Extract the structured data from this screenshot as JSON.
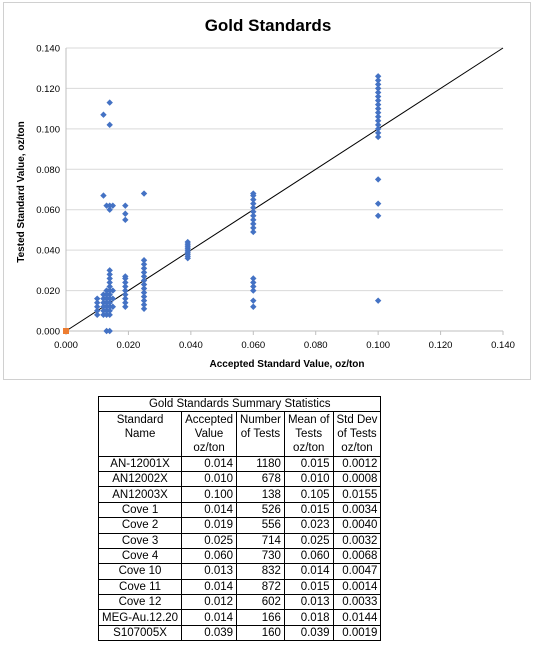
{
  "chart_data": {
    "type": "scatter",
    "title": "Gold Standards",
    "xlabel": "Accepted Standard Value, oz/ton",
    "ylabel": "Tested Standard Value, oz/ton",
    "xlim": [
      0,
      0.14
    ],
    "ylim": [
      0,
      0.14
    ],
    "x_ticks": [
      "0.000",
      "0.020",
      "0.040",
      "0.060",
      "0.080",
      "0.100",
      "0.120",
      "0.140"
    ],
    "y_ticks": [
      "0.000",
      "0.020",
      "0.040",
      "0.060",
      "0.080",
      "0.100",
      "0.120",
      "0.140"
    ],
    "grid": "horizontal",
    "marker_color": "#4472C4",
    "line_color": "#000000",
    "origin_marker_color": "#ED7D31",
    "reference_line": {
      "x": [
        0,
        0.14
      ],
      "y": [
        0,
        0.14
      ]
    },
    "origin_point": {
      "x": 0,
      "y": 0
    },
    "points": [
      {
        "x": 0.01,
        "y": 0.008
      },
      {
        "x": 0.01,
        "y": 0.01
      },
      {
        "x": 0.01,
        "y": 0.012
      },
      {
        "x": 0.01,
        "y": 0.014
      },
      {
        "x": 0.01,
        "y": 0.016
      },
      {
        "x": 0.012,
        "y": 0.008
      },
      {
        "x": 0.012,
        "y": 0.01
      },
      {
        "x": 0.012,
        "y": 0.012
      },
      {
        "x": 0.012,
        "y": 0.014
      },
      {
        "x": 0.012,
        "y": 0.016
      },
      {
        "x": 0.012,
        "y": 0.067
      },
      {
        "x": 0.012,
        "y": 0.107
      },
      {
        "x": 0.012,
        "y": 0.018
      },
      {
        "x": 0.013,
        "y": 0.0
      },
      {
        "x": 0.013,
        "y": 0.008
      },
      {
        "x": 0.013,
        "y": 0.01
      },
      {
        "x": 0.013,
        "y": 0.012
      },
      {
        "x": 0.013,
        "y": 0.014
      },
      {
        "x": 0.013,
        "y": 0.016
      },
      {
        "x": 0.013,
        "y": 0.018
      },
      {
        "x": 0.013,
        "y": 0.02
      },
      {
        "x": 0.013,
        "y": 0.062
      },
      {
        "x": 0.014,
        "y": 0.0
      },
      {
        "x": 0.014,
        "y": 0.008
      },
      {
        "x": 0.014,
        "y": 0.01
      },
      {
        "x": 0.014,
        "y": 0.012
      },
      {
        "x": 0.014,
        "y": 0.014
      },
      {
        "x": 0.014,
        "y": 0.016
      },
      {
        "x": 0.014,
        "y": 0.018
      },
      {
        "x": 0.014,
        "y": 0.02
      },
      {
        "x": 0.014,
        "y": 0.022
      },
      {
        "x": 0.014,
        "y": 0.024
      },
      {
        "x": 0.014,
        "y": 0.026
      },
      {
        "x": 0.014,
        "y": 0.028
      },
      {
        "x": 0.014,
        "y": 0.03
      },
      {
        "x": 0.014,
        "y": 0.06
      },
      {
        "x": 0.014,
        "y": 0.062
      },
      {
        "x": 0.014,
        "y": 0.102
      },
      {
        "x": 0.014,
        "y": 0.113
      },
      {
        "x": 0.015,
        "y": 0.012
      },
      {
        "x": 0.015,
        "y": 0.016
      },
      {
        "x": 0.015,
        "y": 0.02
      },
      {
        "x": 0.015,
        "y": 0.062
      },
      {
        "x": 0.019,
        "y": 0.012
      },
      {
        "x": 0.019,
        "y": 0.014
      },
      {
        "x": 0.019,
        "y": 0.016
      },
      {
        "x": 0.019,
        "y": 0.018
      },
      {
        "x": 0.019,
        "y": 0.02
      },
      {
        "x": 0.019,
        "y": 0.022
      },
      {
        "x": 0.019,
        "y": 0.024
      },
      {
        "x": 0.019,
        "y": 0.026
      },
      {
        "x": 0.019,
        "y": 0.027
      },
      {
        "x": 0.019,
        "y": 0.055
      },
      {
        "x": 0.019,
        "y": 0.058
      },
      {
        "x": 0.019,
        "y": 0.062
      },
      {
        "x": 0.025,
        "y": 0.011
      },
      {
        "x": 0.025,
        "y": 0.013
      },
      {
        "x": 0.025,
        "y": 0.015
      },
      {
        "x": 0.025,
        "y": 0.017
      },
      {
        "x": 0.025,
        "y": 0.019
      },
      {
        "x": 0.025,
        "y": 0.021
      },
      {
        "x": 0.025,
        "y": 0.023
      },
      {
        "x": 0.025,
        "y": 0.025
      },
      {
        "x": 0.025,
        "y": 0.027
      },
      {
        "x": 0.025,
        "y": 0.029
      },
      {
        "x": 0.025,
        "y": 0.031
      },
      {
        "x": 0.025,
        "y": 0.033
      },
      {
        "x": 0.025,
        "y": 0.035
      },
      {
        "x": 0.025,
        "y": 0.068
      },
      {
        "x": 0.039,
        "y": 0.036
      },
      {
        "x": 0.039,
        "y": 0.037
      },
      {
        "x": 0.039,
        "y": 0.038
      },
      {
        "x": 0.039,
        "y": 0.039
      },
      {
        "x": 0.039,
        "y": 0.04
      },
      {
        "x": 0.039,
        "y": 0.041
      },
      {
        "x": 0.039,
        "y": 0.042
      },
      {
        "x": 0.039,
        "y": 0.043
      },
      {
        "x": 0.039,
        "y": 0.044
      },
      {
        "x": 0.06,
        "y": 0.012
      },
      {
        "x": 0.06,
        "y": 0.015
      },
      {
        "x": 0.06,
        "y": 0.02
      },
      {
        "x": 0.06,
        "y": 0.022
      },
      {
        "x": 0.06,
        "y": 0.024
      },
      {
        "x": 0.06,
        "y": 0.026
      },
      {
        "x": 0.06,
        "y": 0.049
      },
      {
        "x": 0.06,
        "y": 0.051
      },
      {
        "x": 0.06,
        "y": 0.053
      },
      {
        "x": 0.06,
        "y": 0.055
      },
      {
        "x": 0.06,
        "y": 0.057
      },
      {
        "x": 0.06,
        "y": 0.059
      },
      {
        "x": 0.06,
        "y": 0.061
      },
      {
        "x": 0.06,
        "y": 0.063
      },
      {
        "x": 0.06,
        "y": 0.065
      },
      {
        "x": 0.06,
        "y": 0.067
      },
      {
        "x": 0.06,
        "y": 0.068
      },
      {
        "x": 0.1,
        "y": 0.015
      },
      {
        "x": 0.1,
        "y": 0.057
      },
      {
        "x": 0.1,
        "y": 0.063
      },
      {
        "x": 0.1,
        "y": 0.075
      },
      {
        "x": 0.1,
        "y": 0.096
      },
      {
        "x": 0.1,
        "y": 0.098
      },
      {
        "x": 0.1,
        "y": 0.1
      },
      {
        "x": 0.1,
        "y": 0.102
      },
      {
        "x": 0.1,
        "y": 0.104
      },
      {
        "x": 0.1,
        "y": 0.106
      },
      {
        "x": 0.1,
        "y": 0.108
      },
      {
        "x": 0.1,
        "y": 0.11
      },
      {
        "x": 0.1,
        "y": 0.112
      },
      {
        "x": 0.1,
        "y": 0.114
      },
      {
        "x": 0.1,
        "y": 0.116
      },
      {
        "x": 0.1,
        "y": 0.118
      },
      {
        "x": 0.1,
        "y": 0.12
      },
      {
        "x": 0.1,
        "y": 0.122
      },
      {
        "x": 0.1,
        "y": 0.124
      },
      {
        "x": 0.1,
        "y": 0.126
      }
    ]
  },
  "table": {
    "caption": "Gold Standards Summary Statistics",
    "header": [
      [
        "Standard",
        "Accepted",
        "Number",
        "Mean of",
        "Std Dev"
      ],
      [
        "Name",
        "Value",
        "of Tests",
        "Tests",
        "of Tests"
      ],
      [
        "",
        "oz/ton",
        "",
        "oz/ton",
        "oz/ton"
      ]
    ],
    "rows": [
      [
        "AN-12001X",
        "0.014",
        "1180",
        "0.015",
        "0.0012"
      ],
      [
        "AN12002X",
        "0.010",
        "678",
        "0.010",
        "0.0008"
      ],
      [
        "AN12003X",
        "0.100",
        "138",
        "0.105",
        "0.0155"
      ],
      [
        "Cove 1",
        "0.014",
        "526",
        "0.015",
        "0.0034"
      ],
      [
        "Cove 2",
        "0.019",
        "556",
        "0.023",
        "0.0040"
      ],
      [
        "Cove 3",
        "0.025",
        "714",
        "0.025",
        "0.0032"
      ],
      [
        "Cove 4",
        "0.060",
        "730",
        "0.060",
        "0.0068"
      ],
      [
        "Cove 10",
        "0.013",
        "832",
        "0.014",
        "0.0047"
      ],
      [
        "Cove 11",
        "0.014",
        "872",
        "0.015",
        "0.0014"
      ],
      [
        "Cove 12",
        "0.012",
        "602",
        "0.013",
        "0.0033"
      ],
      [
        "MEG-Au.12.20",
        "0.014",
        "166",
        "0.018",
        "0.0144"
      ],
      [
        "S107005X",
        "0.039",
        "160",
        "0.039",
        "0.0019"
      ]
    ]
  }
}
